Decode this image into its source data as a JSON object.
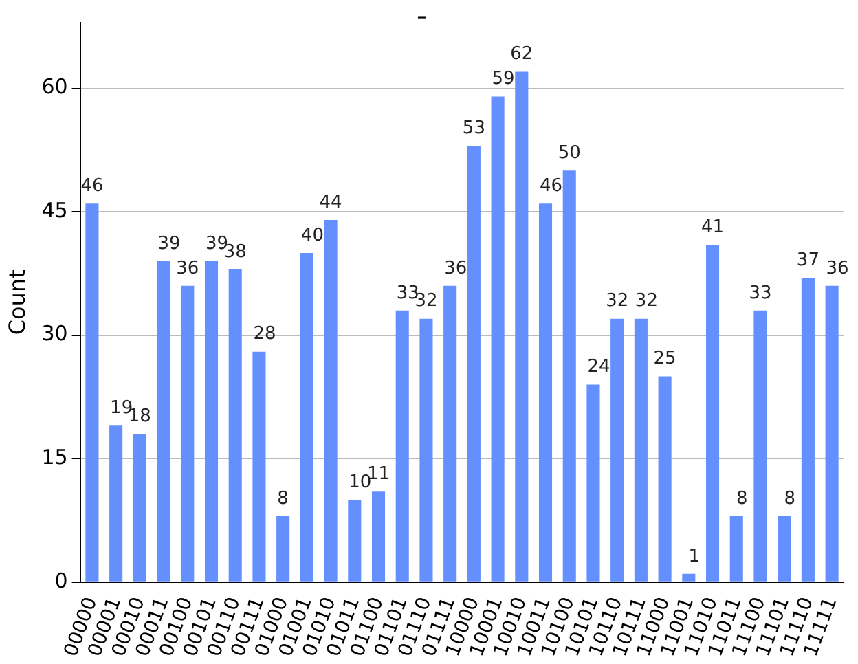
{
  "chart_data": {
    "type": "bar",
    "title": "_",
    "ylabel": "Count",
    "categories": [
      "00000",
      "00001",
      "00010",
      "00011",
      "00100",
      "00101",
      "00110",
      "00111",
      "01000",
      "01001",
      "01010",
      "01011",
      "01100",
      "01101",
      "01110",
      "01111",
      "10000",
      "10001",
      "10010",
      "10011",
      "10100",
      "10101",
      "10110",
      "10111",
      "11000",
      "11001",
      "11010",
      "11011",
      "11100",
      "11101",
      "11110",
      "11111"
    ],
    "values": [
      46,
      19,
      18,
      39,
      36,
      39,
      38,
      28,
      8,
      40,
      44,
      10,
      11,
      33,
      32,
      36,
      53,
      59,
      62,
      46,
      50,
      24,
      32,
      32,
      25,
      1,
      41,
      8,
      33,
      8,
      37,
      36
    ],
    "color": "#648fff",
    "ylim": [
      0,
      68
    ],
    "yticks": [
      0,
      15,
      30,
      45,
      60
    ],
    "grid": "y",
    "data_labels": true,
    "legend": false
  }
}
